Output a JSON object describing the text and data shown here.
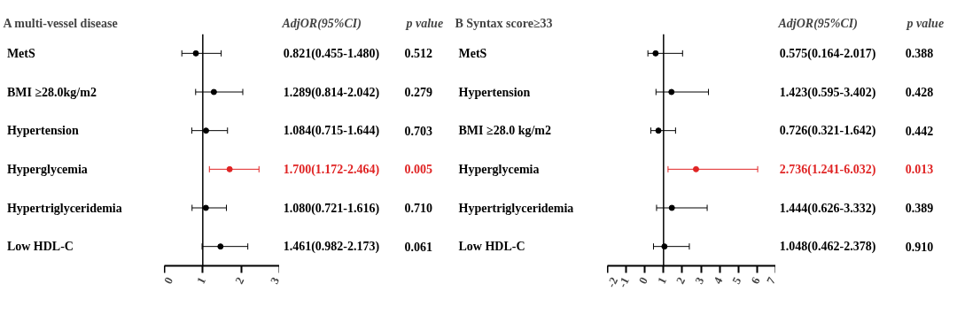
{
  "chart_data": [
    {
      "type": "scatter",
      "orientation": "horizontal",
      "title": "A   multi-vessel disease",
      "categories": [
        "MetS",
        "BMI ≥28.0kg/m2",
        "Hypertension",
        "Hyperglycemia",
        "Hypertriglyceridemia",
        "Low HDL-C"
      ],
      "values": [
        0.821,
        1.289,
        1.084,
        1.7,
        1.08,
        1.461
      ],
      "errors": [
        [
          0.455,
          1.48
        ],
        [
          0.814,
          2.042
        ],
        [
          0.715,
          1.644
        ],
        [
          1.172,
          2.464
        ],
        [
          0.721,
          1.616
        ],
        [
          0.982,
          2.173
        ]
      ],
      "colors": [
        "#000000",
        "#000000",
        "#000000",
        "#e02424",
        "#000000",
        "#000000"
      ],
      "value_labels": [
        "0.821(0.455-1.480)",
        "1.289(0.814-2.042)",
        "1.084(0.715-1.644)",
        "1.700(1.172-2.464)",
        "1.080(0.721-1.616)",
        "1.461(0.982-2.173)"
      ],
      "annotations": [
        "AdjOR(95%CI)",
        "p value",
        "0.512",
        "0.279",
        "0.703",
        "0.005",
        "0.710",
        "0.061"
      ],
      "xlim": [
        0,
        3
      ],
      "xticks": [
        0,
        1,
        2,
        3
      ],
      "ref_lines": [
        {
          "axis": "x",
          "value": 1
        }
      ],
      "marker": "circle",
      "grid": false
    },
    {
      "type": "scatter",
      "orientation": "horizontal",
      "title": "B   Syntax score≥33",
      "categories": [
        "MetS",
        "Hypertension",
        "BMI ≥28.0 kg/m2",
        "Hyperglycemia",
        "Hypertriglyceridemia",
        "Low HDL-C"
      ],
      "values": [
        0.575,
        1.423,
        0.726,
        2.736,
        1.444,
        1.048
      ],
      "errors": [
        [
          0.164,
          2.017
        ],
        [
          0.595,
          3.402
        ],
        [
          0.321,
          1.642
        ],
        [
          1.241,
          6.032
        ],
        [
          0.626,
          3.332
        ],
        [
          0.462,
          2.378
        ]
      ],
      "colors": [
        "#000000",
        "#000000",
        "#000000",
        "#e02424",
        "#000000",
        "#000000"
      ],
      "value_labels": [
        "0.575(0.164-2.017)",
        "1.423(0.595-3.402)",
        "0.726(0.321-1.642)",
        "2.736(1.241-6.032)",
        "1.444(0.626-3.332)",
        "1.048(0.462-2.378)"
      ],
      "annotations": [
        "AdjOR(95%CI)",
        "p value",
        "0.388",
        "0.428",
        "0.442",
        "0.013",
        "0.389",
        "0.910"
      ],
      "xlim": [
        -2,
        7
      ],
      "xticks": [
        -2,
        -1,
        0,
        1,
        2,
        3,
        4,
        5,
        6,
        7
      ],
      "ref_lines": [
        {
          "axis": "x",
          "value": 1
        }
      ],
      "marker": "circle",
      "grid": false
    }
  ]
}
